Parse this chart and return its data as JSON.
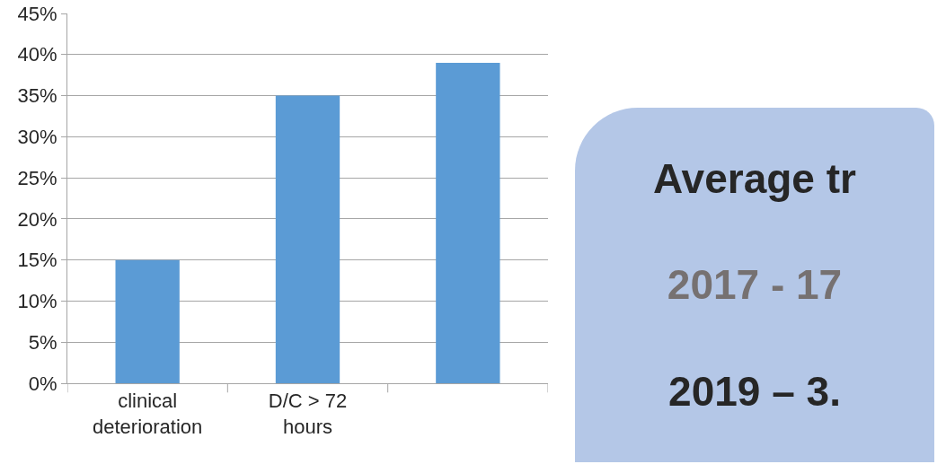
{
  "chart_data": {
    "type": "bar",
    "categories": [
      "clinical deterioration",
      "D/C > 72 hours",
      null
    ],
    "values": [
      15,
      35,
      39
    ],
    "color": "#5b9bd5",
    "ylim": [
      0,
      45
    ],
    "yticks": [
      {
        "value": 0,
        "label": "0%"
      },
      {
        "value": 5,
        "label": "5%"
      },
      {
        "value": 10,
        "label": "10%"
      },
      {
        "value": 15,
        "label": "15%"
      },
      {
        "value": 20,
        "label": "20%"
      },
      {
        "value": 25,
        "label": "25%"
      },
      {
        "value": 30,
        "label": "30%"
      },
      {
        "value": 35,
        "label": "35%"
      },
      {
        "value": 40,
        "label": "40%"
      },
      {
        "value": 45,
        "label": "45%"
      }
    ],
    "grid": "y",
    "annotations": [
      "Average tr",
      "2017 - 17",
      "2019 – 3."
    ]
  }
}
